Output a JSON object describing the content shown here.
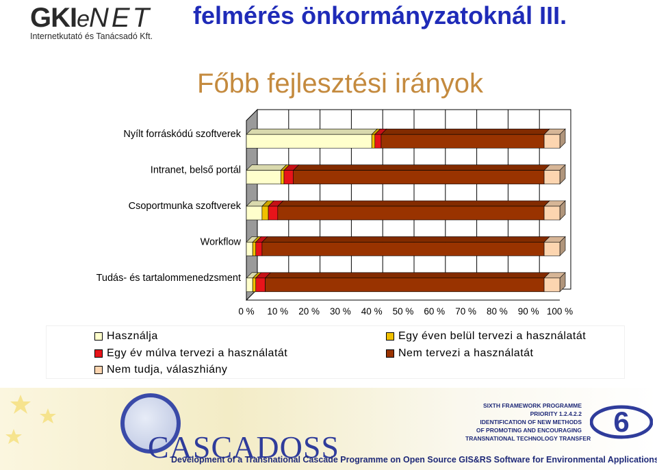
{
  "header": {
    "logo_text_main": "GKIeNET",
    "logo_text_sub": "Internetkutató és Tanácsadó Kft.",
    "slide_title": "felmérés önkormányzatoknál III."
  },
  "section_title": "Főbb fejlesztési irányok",
  "chart_data": {
    "type": "bar",
    "orientation": "horizontal",
    "stacked": "percent",
    "title": "Főbb fejlesztési irányok",
    "categories": [
      "Nyílt forráskódú szoftverek",
      "Intranet, belső portál",
      "Csoportmunka szoftverek",
      "Workflow",
      "Tudás- és tartalommenedzsment"
    ],
    "series": [
      {
        "name": "Használja",
        "color": "#ffffcc",
        "values": [
          40,
          11,
          5,
          2,
          2
        ]
      },
      {
        "name": "Egy éven belül tervezi a használatát",
        "color": "#f0c000",
        "values": [
          1,
          1,
          2,
          1,
          1
        ]
      },
      {
        "name": "Egy év múlva tervezi a használatát",
        "color": "#e8141a",
        "values": [
          2,
          3,
          3,
          2,
          3
        ]
      },
      {
        "name": "Nem tervezi a használatát",
        "color": "#993300",
        "values": [
          52,
          80,
          85,
          90,
          89
        ]
      },
      {
        "name": "Nem tudja, válaszhiány",
        "color": "#fcd5b0",
        "values": [
          5,
          5,
          5,
          5,
          5
        ]
      }
    ],
    "x_ticks": [
      "0 %",
      "10 %",
      "20 %",
      "30 %",
      "40 %",
      "50 %",
      "60 %",
      "70 %",
      "80 %",
      "90 %",
      "100 %"
    ],
    "xlim": [
      0,
      100
    ],
    "grid": true,
    "legend_position": "bottom"
  },
  "legend": {
    "items": [
      {
        "label": "Használja",
        "color": "#ffffcc"
      },
      {
        "label": "Egy éven belül tervezi a használatát",
        "color": "#f0c000"
      },
      {
        "label": "Egy év múlva tervezi a használatát",
        "color": "#e8141a"
      },
      {
        "label": "Nem tervezi a használatát",
        "color": "#993300"
      },
      {
        "label": "Nem tudja, válaszhiány",
        "color": "#fcd5b0"
      }
    ]
  },
  "footer": {
    "project_name": "CASCADOSS",
    "tagline": "Development of a Transnational Cascade Programme on Open Source GIS&RS Software for Environmental Applications",
    "programme_lines": [
      "SIXTH FRAMEWORK PROGRAMME",
      "PRIORITY 1.2.4.2.2",
      "IDENTIFICATION OF NEW METHODS",
      "OF PROMOTING AND ENCOURAGING",
      "TRANSNATIONAL TECHNOLOGY TRANSFER"
    ],
    "fp_logo_text": "6"
  }
}
